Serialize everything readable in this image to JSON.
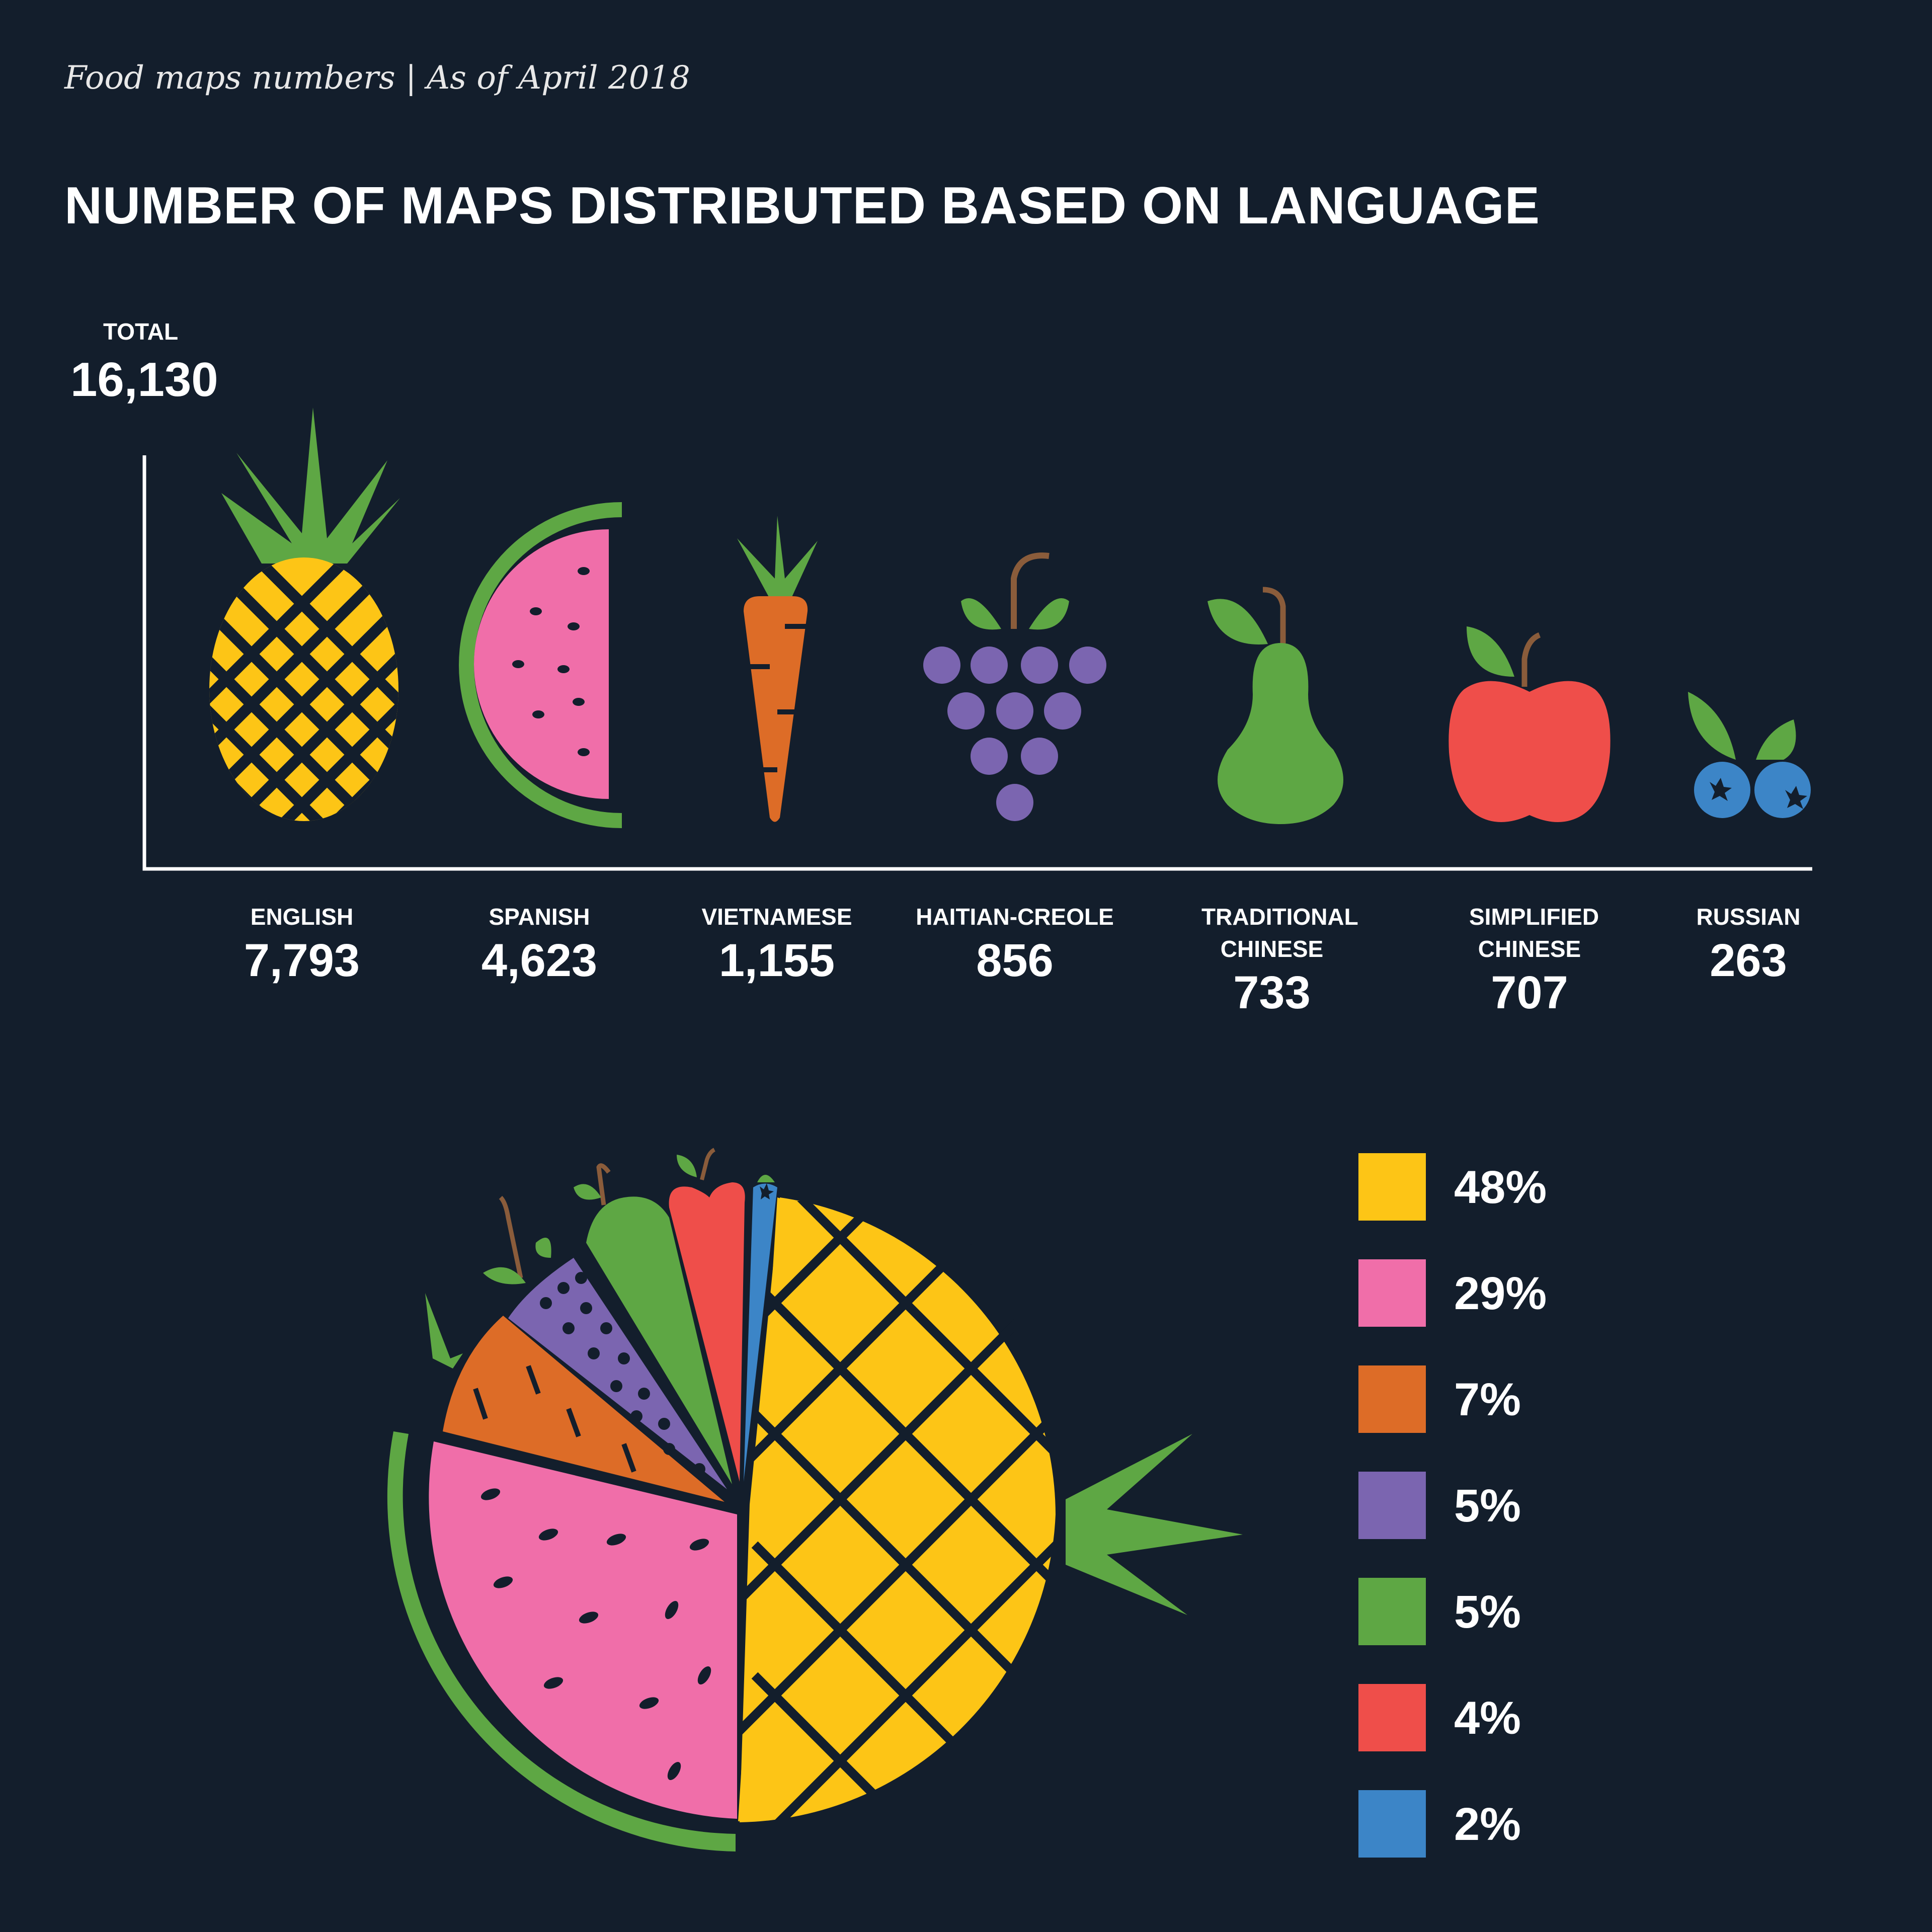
{
  "header": {
    "subtitle": "Food maps numbers | As of April 2018",
    "title": "NUMBER OF MAPS DISTRIBUTED BASED ON LANGUAGE",
    "total_label": "TOTAL",
    "total_value": "16,130"
  },
  "chart_data": [
    {
      "type": "bar",
      "categories": [
        "ENGLISH",
        "SPANISH",
        "VIETNAMESE",
        "HAITIAN-CREOLE",
        "TRADITIONAL CHINESE",
        "SIMPLIFIED CHINESE",
        "RUSSIAN"
      ],
      "values": [
        7793,
        4623,
        1155,
        856,
        733,
        707,
        263
      ],
      "value_labels": [
        "7,793",
        "4,623",
        "1,155",
        "856",
        "733",
        "707",
        "263"
      ],
      "icons": [
        "pineapple-icon",
        "watermelon-icon",
        "carrot-icon",
        "grapes-icon",
        "pear-icon",
        "apple-icon",
        "blueberries-icon"
      ]
    },
    {
      "type": "pie",
      "labels": [
        "48%",
        "29%",
        "7%",
        "5%",
        "5%",
        "4%",
        "2%"
      ],
      "values": [
        48,
        29,
        7,
        5,
        5,
        4,
        2
      ],
      "colors": [
        "#fdc516",
        "#f06ea9",
        "#dd6c27",
        "#7b65b0",
        "#5ea744",
        "#ef4e4a",
        "#3c85c7"
      ]
    }
  ]
}
